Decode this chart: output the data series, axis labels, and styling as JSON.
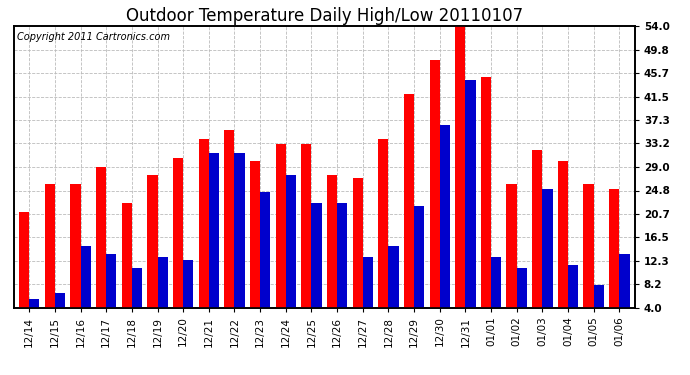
{
  "title": "Outdoor Temperature Daily High/Low 20110107",
  "copyright": "Copyright 2011 Cartronics.com",
  "dates": [
    "12/14",
    "12/15",
    "12/16",
    "12/17",
    "12/18",
    "12/19",
    "12/20",
    "12/21",
    "12/22",
    "12/23",
    "12/24",
    "12/25",
    "12/26",
    "12/27",
    "12/28",
    "12/29",
    "12/30",
    "12/31",
    "01/01",
    "01/02",
    "01/03",
    "01/04",
    "01/05",
    "01/06"
  ],
  "highs": [
    21.0,
    26.0,
    26.0,
    29.0,
    22.5,
    27.5,
    30.5,
    34.0,
    35.5,
    30.0,
    33.0,
    33.0,
    27.5,
    27.0,
    34.0,
    42.0,
    48.0,
    54.0,
    45.0,
    26.0,
    32.0,
    30.0,
    26.0,
    25.0
  ],
  "lows": [
    5.5,
    6.5,
    15.0,
    13.5,
    11.0,
    13.0,
    12.5,
    31.5,
    31.5,
    24.5,
    27.5,
    22.5,
    22.5,
    13.0,
    15.0,
    22.0,
    36.5,
    44.5,
    13.0,
    11.0,
    25.0,
    11.5,
    8.0,
    13.5
  ],
  "high_color": "#ff0000",
  "low_color": "#0000cc",
  "bg_color": "#ffffff",
  "grid_color": "#bbbbbb",
  "ylim_min": 4.0,
  "ylim_max": 54.0,
  "yticks": [
    4.0,
    8.2,
    12.3,
    16.5,
    20.7,
    24.8,
    29.0,
    33.2,
    37.3,
    41.5,
    45.7,
    49.8,
    54.0
  ],
  "title_fontsize": 12,
  "copyright_fontsize": 7,
  "tick_fontsize": 7.5,
  "bar_width": 0.4
}
